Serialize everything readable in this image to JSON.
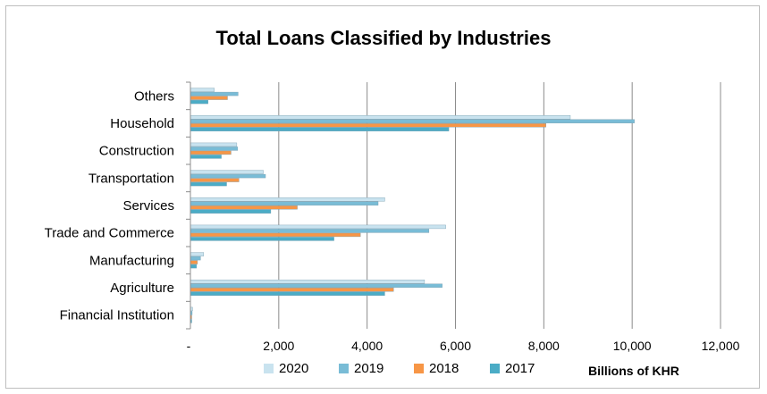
{
  "chart_data": {
    "type": "bar",
    "orientation": "horizontal",
    "title": "Total Loans Classified by Industries",
    "xlabel": "Billions of KHR",
    "ylabel": "",
    "xlim": [
      0,
      12000
    ],
    "x_ticks": [
      "-",
      "2,000",
      "4,000",
      "6,000",
      "8,000",
      "10,000",
      "12,000"
    ],
    "grid": true,
    "legend_position": "bottom",
    "categories": [
      "Financial Institution",
      "Agriculture",
      "Manufacturing",
      "Trade and Commerce",
      "Services",
      "Transportation",
      "Construction",
      "Household",
      "Others"
    ],
    "series": [
      {
        "name": "2020",
        "color": "#c9e3ef",
        "values": [
          50,
          5300,
          300,
          5780,
          4400,
          1650,
          1050,
          8600,
          540
        ]
      },
      {
        "name": "2019",
        "color": "#79bcd6",
        "values": [
          40,
          5700,
          230,
          5400,
          4250,
          1700,
          1070,
          10050,
          1080
        ]
      },
      {
        "name": "2018",
        "color": "#f79646",
        "values": [
          30,
          4600,
          160,
          3850,
          2420,
          1100,
          920,
          8050,
          840
        ]
      },
      {
        "name": "2017",
        "color": "#4bacc6",
        "values": [
          20,
          4400,
          140,
          3250,
          1820,
          820,
          700,
          5850,
          400
        ]
      }
    ]
  }
}
